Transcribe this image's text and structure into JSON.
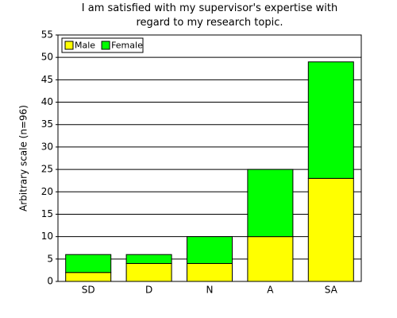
{
  "chart_data": {
    "type": "stacked-bar",
    "title": "I am satisfied with my supervisor's expertise with regard to my research topic.",
    "ylabel": "Arbitrary scale (n=96)",
    "categories": [
      "SD",
      "D",
      "N",
      "A",
      "SA"
    ],
    "series": [
      {
        "name": "Male",
        "color": "#ffff00",
        "values": [
          2,
          4,
          4,
          10,
          23
        ]
      },
      {
        "name": "Female",
        "color": "#00ff00",
        "values": [
          4,
          2,
          6,
          15,
          26
        ]
      }
    ],
    "ylim": [
      0,
      55
    ],
    "yticks": [
      0,
      5,
      10,
      15,
      20,
      25,
      30,
      35,
      40,
      45,
      50,
      55
    ],
    "grid": true,
    "legend": "top-left"
  }
}
